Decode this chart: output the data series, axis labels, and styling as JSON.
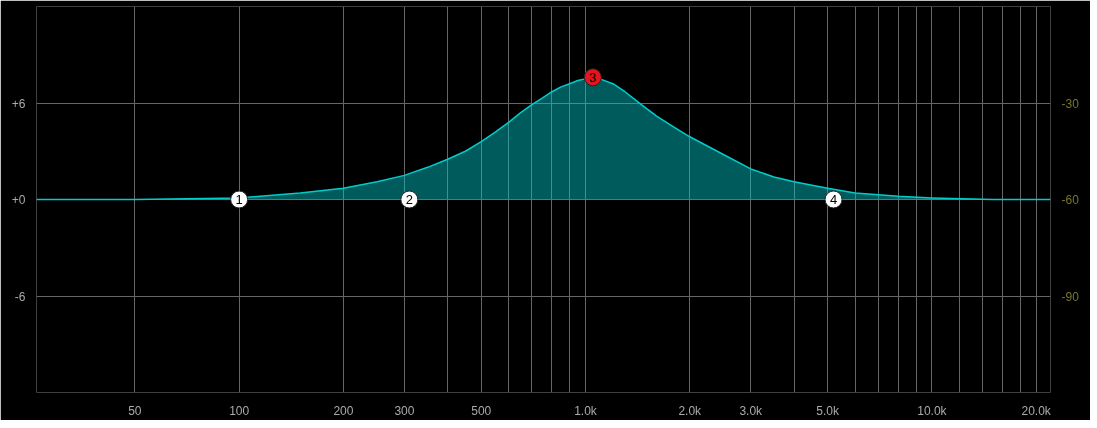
{
  "chart_data": {
    "type": "area",
    "log": "x",
    "grid": true,
    "xlim": [
      26,
      22000
    ],
    "ylim": [
      -12,
      12
    ],
    "y2lim": [
      -120,
      0
    ],
    "xticks": [
      50,
      100,
      200,
      300,
      {
        "value": 400,
        "label": null
      },
      500,
      {
        "value": 600,
        "label": null
      },
      {
        "value": 700,
        "label": null
      },
      {
        "value": 800,
        "label": null
      },
      {
        "value": 900,
        "label": null
      },
      {
        "value": 1000,
        "label": "1.0k"
      },
      {
        "value": 2000,
        "label": "2.0k"
      },
      {
        "value": 3000,
        "label": "3.0k"
      },
      {
        "value": 4000,
        "label": null
      },
      {
        "value": 5000,
        "label": "5.0k"
      },
      {
        "value": 6000,
        "label": null
      },
      {
        "value": 7000,
        "label": null
      },
      {
        "value": 8000,
        "label": null
      },
      {
        "value": 9000,
        "label": null
      },
      {
        "value": 10000,
        "label": "10.0k"
      },
      {
        "value": 12000,
        "label": null
      },
      {
        "value": 14000,
        "label": null
      },
      {
        "value": 16000,
        "label": null
      },
      {
        "value": 18000,
        "label": null
      },
      {
        "value": 20000,
        "label": "20.0k"
      }
    ],
    "yticks": [
      {
        "value": 6,
        "label": "+6"
      },
      {
        "value": 0,
        "label": "+0"
      },
      -6
    ],
    "y2ticks": [
      -30,
      -60,
      -90
    ],
    "series": [
      {
        "color": "#00cccc",
        "x": [
          26,
          50,
          100,
          150,
          200,
          250,
          300,
          350,
          400,
          450,
          500,
          550,
          600,
          650,
          700,
          750,
          800,
          850,
          900,
          950,
          1000,
          1050,
          1100,
          1200,
          1300,
          1450,
          1600,
          1800,
          2000,
          2500,
          3000,
          3500,
          4000,
          5000,
          6000,
          8000,
          10000,
          15000,
          20000,
          22000
        ],
        "values": [
          0,
          0,
          0.1,
          0.4,
          0.7,
          1.1,
          1.5,
          2.0,
          2.5,
          3.0,
          3.6,
          4.2,
          4.8,
          5.4,
          5.9,
          6.3,
          6.7,
          7.0,
          7.2,
          7.4,
          7.5,
          7.6,
          7.5,
          7.2,
          6.7,
          5.9,
          5.2,
          4.5,
          3.9,
          2.8,
          1.9,
          1.4,
          1.1,
          0.7,
          0.4,
          0.2,
          0.1,
          0,
          0,
          0
        ]
      },
      {
        "type": "scatter",
        "marker": "circle",
        "x": [
          100,
          310,
          1050,
          5200
        ],
        "values": [
          0,
          0,
          7.6,
          0
        ],
        "colors": [
          "#ffffff",
          "#ffffff",
          "#e8141c",
          "#ffffff"
        ]
      }
    ],
    "annotations": [
      {
        "text": "1",
        "x": 100,
        "y": 0
      },
      {
        "text": "2",
        "x": 310,
        "y": 0
      },
      {
        "text": "3",
        "x": 1050,
        "y": 7.6
      },
      {
        "text": "4",
        "x": 5200,
        "y": 0
      }
    ]
  }
}
